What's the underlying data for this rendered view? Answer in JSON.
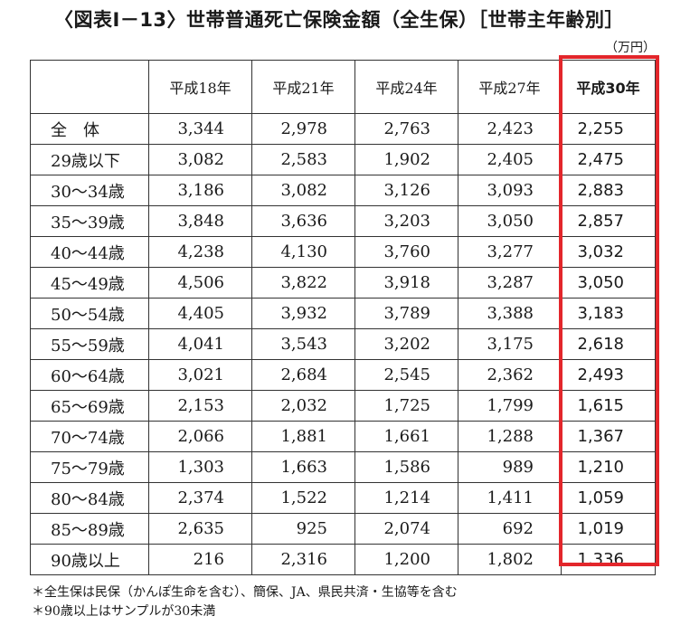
{
  "title": "〈図表Ⅰ－13〉世帯普通死亡保険金額（全生保）［世帯主年齢別］",
  "unit": "（万円）",
  "columns": [
    "平成18年",
    "平成21年",
    "平成24年",
    "平成27年",
    "平成30年"
  ],
  "rows": [
    {
      "label": "全　体",
      "values": [
        "3,344",
        "2,978",
        "2,763",
        "2,423",
        "2,255"
      ]
    },
    {
      "label": "29歳以下",
      "values": [
        "3,082",
        "2,583",
        "1,902",
        "2,405",
        "2,475"
      ]
    },
    {
      "label": "30～34歳",
      "values": [
        "3,186",
        "3,082",
        "3,126",
        "3,093",
        "2,883"
      ]
    },
    {
      "label": "35～39歳",
      "values": [
        "3,848",
        "3,636",
        "3,203",
        "3,050",
        "2,857"
      ]
    },
    {
      "label": "40～44歳",
      "values": [
        "4,238",
        "4,130",
        "3,760",
        "3,277",
        "3,032"
      ]
    },
    {
      "label": "45～49歳",
      "values": [
        "4,506",
        "3,822",
        "3,918",
        "3,287",
        "3,050"
      ]
    },
    {
      "label": "50～54歳",
      "values": [
        "4,405",
        "3,932",
        "3,789",
        "3,388",
        "3,183"
      ]
    },
    {
      "label": "55～59歳",
      "values": [
        "4,041",
        "3,543",
        "3,202",
        "3,175",
        "2,618"
      ]
    },
    {
      "label": "60～64歳",
      "values": [
        "3,021",
        "2,684",
        "2,545",
        "2,362",
        "2,493"
      ]
    },
    {
      "label": "65～69歳",
      "values": [
        "2,153",
        "2,032",
        "1,725",
        "1,799",
        "1,615"
      ]
    },
    {
      "label": "70～74歳",
      "values": [
        "2,066",
        "1,881",
        "1,661",
        "1,288",
        "1,367"
      ]
    },
    {
      "label": "75～79歳",
      "values": [
        "1,303",
        "1,663",
        "1,586",
        "989",
        "1,210"
      ]
    },
    {
      "label": "80～84歳",
      "values": [
        "2,374",
        "1,522",
        "1,214",
        "1,411",
        "1,059"
      ]
    },
    {
      "label": "85～89歳",
      "values": [
        "2,635",
        "925",
        "2,074",
        "692",
        "1,019"
      ]
    },
    {
      "label": "90歳以上",
      "values": [
        "216",
        "2,316",
        "1,200",
        "1,802",
        "1,336"
      ]
    }
  ],
  "highlight_color": "#e3262b",
  "notes": [
    "＊全生保は民保（かんぽ生命を含む）、簡保、JA、県民共済・生協等を含む",
    "＊90歳以上はサンプルが30未満"
  ]
}
